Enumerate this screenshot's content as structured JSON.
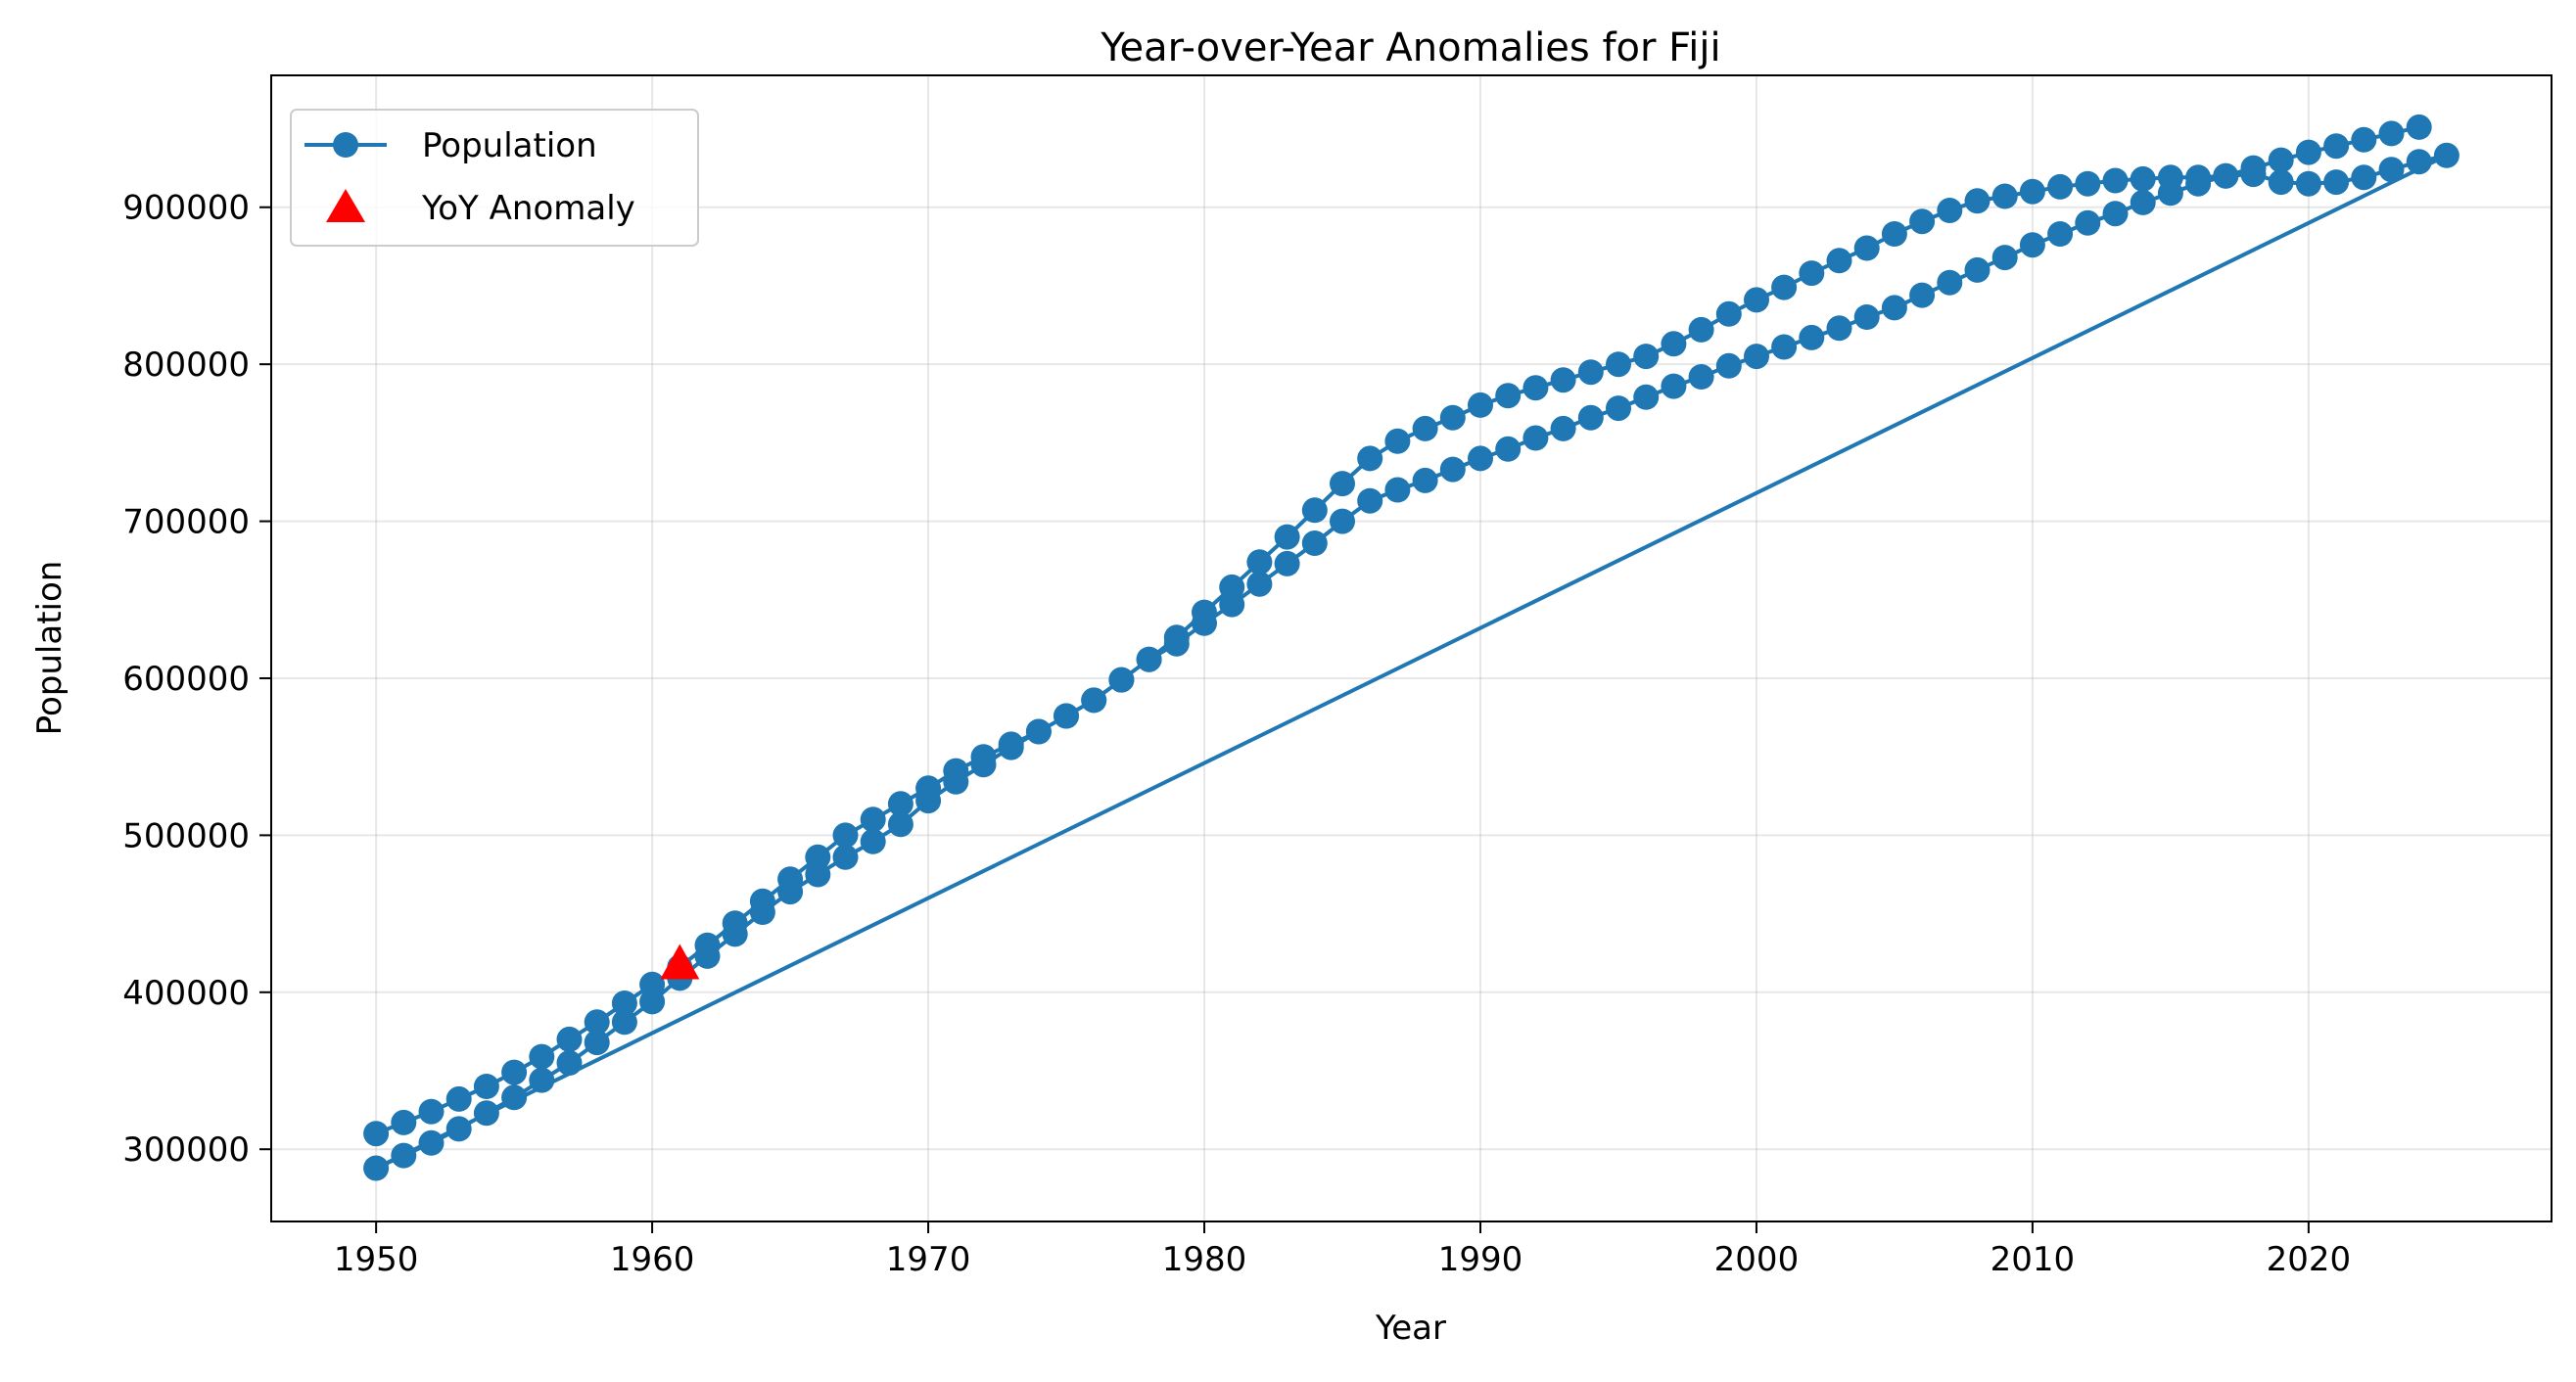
{
  "chart_data": {
    "type": "line",
    "title": "Year-over-Year Anomalies for Fiji",
    "xlabel": "Year",
    "ylabel": "Population",
    "xlim": [
      1946.2,
      2028.8
    ],
    "ylim": [
      254000,
      984000
    ],
    "x_ticks": [
      1950,
      1960,
      1970,
      1980,
      1990,
      2000,
      2010,
      2020
    ],
    "y_ticks": [
      300000,
      400000,
      500000,
      600000,
      700000,
      800000,
      900000
    ],
    "grid": true,
    "legend_position": "top-left",
    "series": [
      {
        "name": "Population",
        "color": "#1f77b4",
        "marker": "circle",
        "points": [
          [
            1950,
            310000
          ],
          [
            1951,
            317000
          ],
          [
            1952,
            324000
          ],
          [
            1953,
            332000
          ],
          [
            1954,
            340000
          ],
          [
            1955,
            349000
          ],
          [
            1956,
            359000
          ],
          [
            1957,
            370000
          ],
          [
            1958,
            381000
          ],
          [
            1959,
            393000
          ],
          [
            1960,
            405000
          ],
          [
            1961,
            416000
          ],
          [
            1962,
            430000
          ],
          [
            1963,
            444000
          ],
          [
            1964,
            458000
          ],
          [
            1965,
            472000
          ],
          [
            1966,
            486000
          ],
          [
            1967,
            500000
          ],
          [
            1968,
            510000
          ],
          [
            1969,
            520000
          ],
          [
            1970,
            530000
          ],
          [
            1971,
            541000
          ],
          [
            1972,
            550000
          ],
          [
            1973,
            558000
          ],
          [
            1974,
            566000
          ],
          [
            1975,
            576000
          ],
          [
            1976,
            586000
          ],
          [
            1977,
            599000
          ],
          [
            1978,
            612000
          ],
          [
            1979,
            626000
          ],
          [
            1980,
            642000
          ],
          [
            1981,
            658000
          ],
          [
            1982,
            674000
          ],
          [
            1983,
            690000
          ],
          [
            1984,
            707000
          ],
          [
            1985,
            724000
          ],
          [
            1986,
            740000
          ],
          [
            1987,
            751000
          ],
          [
            1988,
            759000
          ],
          [
            1989,
            766000
          ],
          [
            1990,
            774000
          ],
          [
            1991,
            780000
          ],
          [
            1992,
            785000
          ],
          [
            1993,
            790000
          ],
          [
            1994,
            795000
          ],
          [
            1995,
            800000
          ],
          [
            1996,
            805000
          ],
          [
            1997,
            813000
          ],
          [
            1998,
            822000
          ],
          [
            1999,
            832000
          ],
          [
            2000,
            841000
          ],
          [
            2001,
            849000
          ],
          [
            2002,
            858000
          ],
          [
            2003,
            866000
          ],
          [
            2004,
            874000
          ],
          [
            2005,
            883000
          ],
          [
            2006,
            891000
          ],
          [
            2007,
            898000
          ],
          [
            2008,
            904000
          ],
          [
            2009,
            907000
          ],
          [
            2010,
            910000
          ],
          [
            2011,
            913000
          ],
          [
            2012,
            915000
          ],
          [
            2013,
            917000
          ],
          [
            2014,
            918000
          ],
          [
            2015,
            919000
          ],
          [
            2016,
            919000
          ],
          [
            2017,
            920000
          ],
          [
            2018,
            921000
          ],
          [
            2019,
            916000
          ],
          [
            2020,
            915000
          ],
          [
            2021,
            916000
          ],
          [
            2022,
            919000
          ],
          [
            2023,
            924000
          ],
          [
            2024,
            929000
          ],
          [
            2025,
            933000
          ],
          [
            1950,
            288000
          ],
          [
            1951,
            296000
          ],
          [
            1952,
            304000
          ],
          [
            1953,
            313000
          ],
          [
            1954,
            323000
          ],
          [
            1955,
            333000
          ],
          [
            1956,
            344000
          ],
          [
            1957,
            355000
          ],
          [
            1958,
            368000
          ],
          [
            1959,
            381000
          ],
          [
            1960,
            394000
          ],
          [
            1961,
            409000
          ],
          [
            1962,
            423000
          ],
          [
            1963,
            437000
          ],
          [
            1964,
            451000
          ],
          [
            1965,
            464000
          ],
          [
            1966,
            475000
          ],
          [
            1967,
            486000
          ],
          [
            1968,
            496000
          ],
          [
            1969,
            507000
          ],
          [
            1970,
            522000
          ],
          [
            1971,
            534000
          ],
          [
            1972,
            545000
          ],
          [
            1973,
            556000
          ],
          [
            1974,
            566000
          ],
          [
            1975,
            576000
          ],
          [
            1976,
            586000
          ],
          [
            1977,
            599000
          ],
          [
            1978,
            612000
          ],
          [
            1979,
            622000
          ],
          [
            1980,
            635000
          ],
          [
            1981,
            647000
          ],
          [
            1982,
            660000
          ],
          [
            1983,
            673000
          ],
          [
            1984,
            686000
          ],
          [
            1985,
            700000
          ],
          [
            1986,
            713000
          ],
          [
            1987,
            720000
          ],
          [
            1988,
            726000
          ],
          [
            1989,
            733000
          ],
          [
            1990,
            740000
          ],
          [
            1991,
            746000
          ],
          [
            1992,
            753000
          ],
          [
            1993,
            759000
          ],
          [
            1994,
            766000
          ],
          [
            1995,
            772000
          ],
          [
            1996,
            779000
          ],
          [
            1997,
            786000
          ],
          [
            1998,
            792000
          ],
          [
            1999,
            799000
          ],
          [
            2000,
            805000
          ],
          [
            2001,
            811000
          ],
          [
            2002,
            817000
          ],
          [
            2003,
            823000
          ],
          [
            2004,
            830000
          ],
          [
            2005,
            836000
          ],
          [
            2006,
            844000
          ],
          [
            2007,
            852000
          ],
          [
            2008,
            860000
          ],
          [
            2009,
            868000
          ],
          [
            2010,
            876000
          ],
          [
            2011,
            883000
          ],
          [
            2012,
            890000
          ],
          [
            2013,
            896000
          ],
          [
            2014,
            903000
          ],
          [
            2015,
            909000
          ],
          [
            2016,
            915000
          ],
          [
            2017,
            920000
          ],
          [
            2018,
            925000
          ],
          [
            2019,
            930000
          ],
          [
            2020,
            935000
          ],
          [
            2021,
            939000
          ],
          [
            2022,
            943000
          ],
          [
            2023,
            947000
          ],
          [
            2024,
            951000
          ]
        ]
      },
      {
        "name": "YoY Anomaly",
        "color": "#ff0000",
        "marker": "triangle",
        "points": [
          [
            1961,
            417000
          ]
        ]
      }
    ]
  }
}
